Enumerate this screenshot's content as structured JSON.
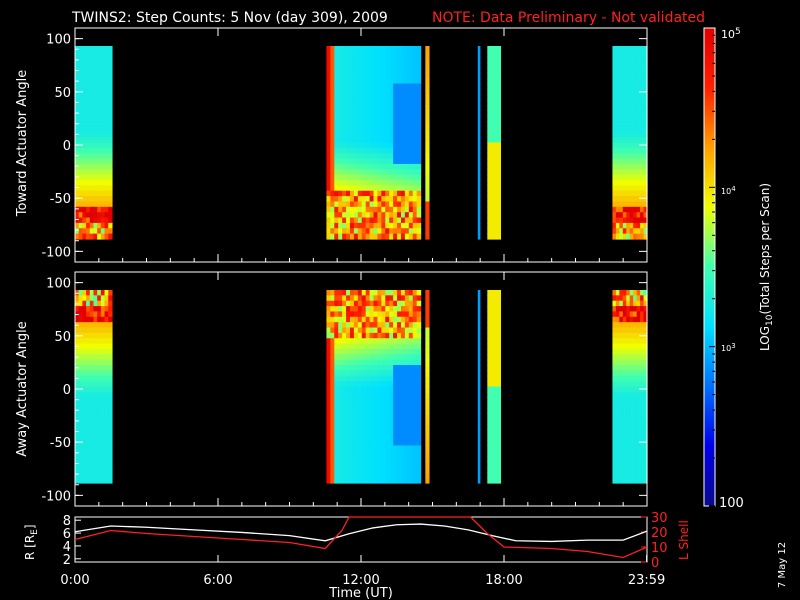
{
  "header": {
    "title": "TWINS2: Step Counts:  5 Nov (day 309), 2009",
    "note": "NOTE: Data Preliminary - Not validated"
  },
  "side_date": "7 May 12",
  "colors": {
    "background": "#000000",
    "note": "#ff2020",
    "lshell": "#ff2020",
    "radius": "#ffffff"
  },
  "chart_data": [
    {
      "type": "heatmap",
      "ylabel": "Toward Actuator Angle",
      "x_unit": "hours UT",
      "xlim": [
        0,
        24
      ],
      "ylim": [
        -110,
        110
      ],
      "yticks": [
        "100",
        "50",
        "0",
        "-50",
        "-100"
      ],
      "data_blocks": [
        {
          "t_start": 0.0,
          "t_end": 1.55,
          "variant": "day"
        },
        {
          "t_start": 10.55,
          "t_end": 14.5,
          "variant": "burst"
        },
        {
          "t_start": 14.7,
          "t_end": 14.85,
          "variant": "thin"
        },
        {
          "t_start": 16.9,
          "t_end": 16.95,
          "variant": "spike"
        },
        {
          "t_start": 17.3,
          "t_end": 17.85,
          "variant": "narrow"
        },
        {
          "t_start": 22.55,
          "t_end": 24.0,
          "variant": "day"
        }
      ]
    },
    {
      "type": "heatmap",
      "ylabel": "Away Actuator Angle",
      "x_unit": "hours UT",
      "xlim": [
        0,
        24
      ],
      "ylim": [
        -110,
        110
      ],
      "yticks": [
        "100",
        "50",
        "0",
        "-50",
        "-100"
      ],
      "data_blocks": [
        {
          "t_start": 0.0,
          "t_end": 1.55,
          "variant": "day"
        },
        {
          "t_start": 10.55,
          "t_end": 14.5,
          "variant": "burst"
        },
        {
          "t_start": 14.7,
          "t_end": 14.85,
          "variant": "thin"
        },
        {
          "t_start": 16.9,
          "t_end": 16.95,
          "variant": "spike"
        },
        {
          "t_start": 17.3,
          "t_end": 17.85,
          "variant": "narrow"
        },
        {
          "t_start": 22.55,
          "t_end": 24.0,
          "variant": "day"
        }
      ]
    },
    {
      "type": "line",
      "ylabel_left": "R [R",
      "ylabel_left_sub": "E",
      "ylabel_left_end": "]",
      "ylabel_right": "L Shell",
      "xlabel": "Time (UT)",
      "xticks": [
        "0:00",
        "6:00",
        "12:00",
        "18:00",
        "23:59"
      ],
      "xtick_hours": [
        0,
        6,
        12,
        18,
        23.983
      ],
      "yticks_left": [
        "8",
        "6",
        "4",
        "2"
      ],
      "yticks_right": [
        "30",
        "20",
        "10",
        "0"
      ],
      "ylim_left": [
        1.5,
        8.5
      ],
      "ylim_right": [
        0,
        30
      ],
      "series": [
        {
          "name": "R",
          "x": [
            0,
            1.5,
            3,
            5,
            7,
            9,
            10.5,
            11.5,
            12.5,
            13.5,
            14.5,
            15.5,
            16.5,
            17.5,
            18.5,
            20,
            21.5,
            23,
            24
          ],
          "y": [
            6.2,
            7.1,
            6.9,
            6.5,
            6.1,
            5.6,
            4.8,
            5.9,
            6.8,
            7.3,
            7.4,
            7.1,
            6.5,
            5.6,
            4.8,
            4.7,
            4.9,
            4.9,
            6.3
          ]
        },
        {
          "name": "L Shell",
          "x": [
            0,
            1.5,
            3,
            5,
            7,
            9,
            10.5,
            11.2,
            11.5,
            16.6,
            17.3,
            18,
            20,
            21.5,
            23,
            24
          ],
          "y": [
            15,
            21,
            19,
            17,
            15,
            13,
            9,
            21,
            31,
            31,
            19,
            10,
            9,
            7,
            3,
            10
          ]
        }
      ]
    }
  ],
  "colorbar": {
    "label": "LOG",
    "label_sub": "10",
    "label_rest": "(Total Steps per Scan)",
    "range": [
      100,
      100000
    ],
    "top_label_base": "10",
    "top_label_exp": "5",
    "mid_label_base": "10",
    "mid_label_exp": "4",
    "low_label_base": "10",
    "low_label_exp": "3",
    "bottom_label": "100",
    "stops": [
      "#0a0a8c",
      "#0000e8",
      "#0070ff",
      "#00e0ff",
      "#40ffb0",
      "#f0ff00",
      "#ffa000",
      "#ff2000",
      "#e00000"
    ]
  }
}
